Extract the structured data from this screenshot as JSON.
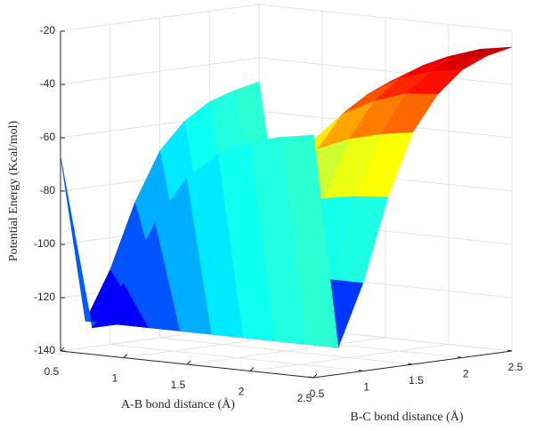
{
  "chart_data": {
    "type": "surface",
    "x_label": "A-B bond distance (Å)",
    "y_label": "B-C bond distance (Å)",
    "z_label": "Potential Energy (Kcal/mol)",
    "x": [
      0.5,
      0.75,
      1,
      1.25,
      1.5,
      1.75,
      2,
      2.25,
      2.5
    ],
    "y": [
      0.5,
      0.75,
      1,
      1.25,
      1.5,
      1.75,
      2,
      2.25,
      2.5
    ],
    "z": [
      [
        -67,
        -130,
        -112,
        -88,
        -70,
        -60,
        -54,
        -51,
        -49
      ],
      [
        -130,
        -130,
        -130,
        -130,
        -130,
        -130,
        -130,
        -130,
        -130
      ],
      [
        -112,
        -130,
        -125,
        -118,
        -113,
        -110,
        -108,
        -107,
        -107
      ],
      [
        -88,
        -130,
        -118,
        -102,
        -90,
        -83,
        -79,
        -77,
        -76
      ],
      [
        -70,
        -130,
        -113,
        -90,
        -73,
        -63,
        -58,
        -55,
        -53
      ],
      [
        -60,
        -130,
        -110,
        -83,
        -63,
        -51,
        -45,
        -41,
        -40
      ],
      [
        -54,
        -130,
        -108,
        -79,
        -58,
        -45,
        -38,
        -34,
        -32
      ],
      [
        -51,
        -130,
        -107,
        -77,
        -55,
        -41,
        -34,
        -30,
        -28
      ],
      [
        -49,
        -130,
        -107,
        -76,
        -53,
        -40,
        -32,
        -28,
        -26
      ]
    ],
    "xlim": [
      0.5,
      2.5
    ],
    "ylim": [
      0.5,
      2.5
    ],
    "zlim": [
      -140,
      -20
    ],
    "xticks": [
      0.5,
      1,
      1.5,
      2,
      2.5
    ],
    "yticks": [
      0.5,
      1,
      1.5,
      2,
      2.5
    ],
    "zticks": [
      -140,
      -120,
      -100,
      -80,
      -60,
      -40,
      -20
    ],
    "colormap": "jet",
    "grid": true
  }
}
